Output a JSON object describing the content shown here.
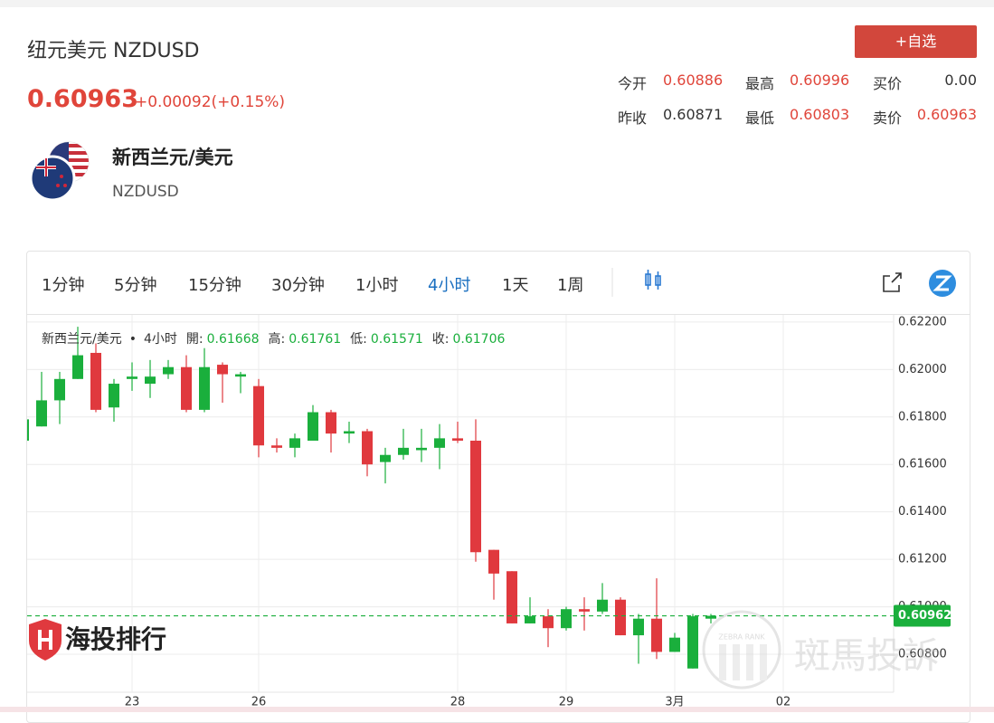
{
  "header": {
    "title": "纽元美元 NZDUSD",
    "price": "0.60963",
    "change": "+0.00092(+0.15%)",
    "button": "+自选",
    "price_color": "#e0453a"
  },
  "stats": [
    {
      "label": "今开",
      "value": "0.60886",
      "color": "#e0453a"
    },
    {
      "label": "最高",
      "value": "0.60996",
      "color": "#e0453a"
    },
    {
      "label": "买价",
      "value": "0.00",
      "color": "#333333"
    },
    {
      "label": "昨收",
      "value": "0.60871",
      "color": "#333333"
    },
    {
      "label": "最低",
      "value": "0.60803",
      "color": "#e0453a"
    },
    {
      "label": "卖价",
      "value": "0.60963",
      "color": "#e0453a"
    }
  ],
  "instrument": {
    "name": "新西兰元/美元",
    "code": "NZDUSD"
  },
  "toolbar": {
    "intervals": [
      "1分钟",
      "5分钟",
      "15分钟",
      "30分钟",
      "1小时",
      "4小时",
      "1天",
      "1周"
    ],
    "active": 5
  },
  "chart_data": {
    "type": "candlestick",
    "legend": {
      "name": "新西兰元/美元",
      "separator": "•",
      "interval": "4小时",
      "fields": [
        {
          "label": "開:",
          "value": "0.61668"
        },
        {
          "label": "高:",
          "value": "0.61761"
        },
        {
          "label": "低:",
          "value": "0.61571"
        },
        {
          "label": "收:",
          "value": "0.61706"
        }
      ]
    },
    "categories": [
      null,
      null,
      null,
      null,
      null,
      null,
      "23",
      null,
      null,
      null,
      null,
      null,
      null,
      "26",
      null,
      null,
      null,
      null,
      null,
      null,
      null,
      null,
      null,
      null,
      "28",
      null,
      null,
      null,
      null,
      null,
      "29",
      null,
      null,
      null,
      null,
      null,
      "3月",
      null,
      null,
      null,
      null,
      null,
      "02"
    ],
    "open": [
      0.617,
      0.6176,
      0.6187,
      0.6196,
      0.6207,
      0.6184,
      0.6196,
      0.6194,
      0.6198,
      0.6201,
      0.6183,
      0.6202,
      0.6197,
      0.6193,
      0.6168,
      0.6167,
      0.617,
      0.6182,
      0.6173,
      0.6174,
      0.6161,
      0.6164,
      0.6166,
      0.6167,
      0.6171,
      0.617,
      0.6124,
      0.6115,
      0.6093,
      0.6096,
      0.6091,
      0.6099,
      0.6098,
      0.6103,
      0.6088,
      0.6095,
      0.6081,
      0.6074,
      0.6095,
      null,
      null,
      null,
      null
    ],
    "high": [
      0.6181,
      0.6199,
      0.6199,
      0.6218,
      0.6211,
      0.6196,
      0.6203,
      0.6204,
      0.6204,
      0.6206,
      0.6209,
      0.6203,
      0.6199,
      0.6196,
      0.6171,
      0.6173,
      0.6185,
      0.6183,
      0.6178,
      0.6175,
      0.6167,
      0.6175,
      0.6175,
      0.6177,
      0.6178,
      0.6179,
      0.6124,
      0.6115,
      0.6104,
      0.6099,
      0.61,
      0.6104,
      0.611,
      0.6104,
      0.6097,
      0.6112,
      0.6089,
      0.6097,
      0.6097,
      null,
      null,
      null,
      null
    ],
    "low": [
      0.6169,
      0.6176,
      0.6177,
      0.6196,
      0.6182,
      0.6178,
      0.6191,
      0.6188,
      0.6196,
      0.6182,
      0.6182,
      0.6186,
      0.619,
      0.6163,
      0.6165,
      0.6163,
      0.617,
      0.6165,
      0.6169,
      0.6155,
      0.6152,
      0.6162,
      0.6161,
      0.6158,
      0.6169,
      0.6119,
      0.6103,
      0.6093,
      0.6093,
      0.6083,
      0.609,
      0.609,
      0.6097,
      0.6088,
      0.6076,
      0.6078,
      0.6081,
      0.6074,
      0.6093,
      null,
      null,
      null,
      null
    ],
    "close": [
      0.6179,
      0.6187,
      0.6196,
      0.6206,
      0.6183,
      0.6194,
      0.6197,
      0.6197,
      0.6201,
      0.6183,
      0.6201,
      0.6198,
      0.6198,
      0.6168,
      0.6167,
      0.6171,
      0.6182,
      0.6173,
      0.6174,
      0.616,
      0.6164,
      0.6167,
      0.6167,
      0.6171,
      0.617,
      0.6123,
      0.6114,
      0.6093,
      0.6096,
      0.6091,
      0.6099,
      0.6098,
      0.6103,
      0.6088,
      0.6095,
      0.6081,
      0.6087,
      0.6096,
      0.60962,
      null,
      null,
      null,
      null
    ],
    "ylim": [
      0.6064,
      0.6223
    ],
    "yticks": [
      {
        "value": 0.622,
        "label": "0.62200"
      },
      {
        "value": 0.62,
        "label": "0.62000"
      },
      {
        "value": 0.618,
        "label": "0.61800"
      },
      {
        "value": 0.616,
        "label": "0.61600"
      },
      {
        "value": 0.614,
        "label": "0.61400"
      },
      {
        "value": 0.612,
        "label": "0.61200"
      },
      {
        "value": 0.61,
        "label": "0.61000"
      },
      {
        "value": 0.608,
        "label": "0.60800"
      }
    ],
    "last_price": 0.60962,
    "grid": true,
    "up_color": "#1aaf3c",
    "down_color": "#e0393e"
  },
  "watermarks": {
    "logo": "海投排行",
    "brand": "斑馬投訴",
    "badge": "ZEBRA RANK"
  }
}
